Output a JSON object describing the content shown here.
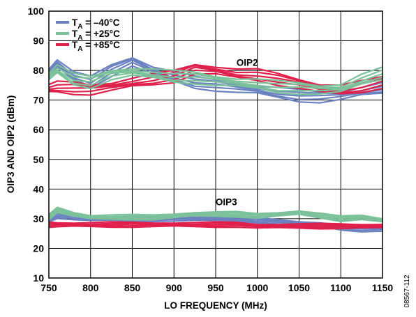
{
  "chart_data": {
    "type": "line",
    "xlabel": "LO FREQUENCY (MHz)",
    "ylabel": "OIP3 AND OIP2 (dBm)",
    "xlim": [
      750,
      1150
    ],
    "ylim": [
      10,
      100
    ],
    "xticks": [
      "750",
      "800",
      "850",
      "900",
      "950",
      "1000",
      "1050",
      "1100",
      "1150"
    ],
    "yticks": [
      "10",
      "20",
      "30",
      "40",
      "50",
      "60",
      "70",
      "80",
      "90",
      "100"
    ],
    "grid": true,
    "legend_position": "top-left",
    "x": [
      750,
      760,
      780,
      800,
      825,
      850,
      875,
      900,
      925,
      950,
      975,
      1000,
      1025,
      1050,
      1075,
      1100,
      1125,
      1150
    ],
    "series": [
      {
        "color": "#6b82c1",
        "group": "OIP2",
        "values": [
          79,
          82.5,
          78,
          76,
          80,
          83,
          80,
          78,
          76,
          75,
          74,
          73.5,
          72.5,
          71.5,
          71,
          71.5,
          73,
          74
        ]
      },
      {
        "color": "#7bc29a",
        "group": "OIP2",
        "values": [
          78,
          80.5,
          77,
          76,
          78.5,
          79.5,
          79,
          78,
          77.5,
          76.5,
          76,
          75.5,
          74.5,
          74,
          73.5,
          74,
          77,
          79
        ]
      },
      {
        "color": "#e01f4b",
        "group": "OIP2",
        "values": [
          74,
          74.5,
          74,
          73.5,
          74.5,
          76,
          77,
          78,
          80.5,
          80,
          79,
          78.5,
          77,
          75.5,
          74,
          73.5,
          74.5,
          76
        ]
      },
      {
        "color": "#6b82c1",
        "group": "OIP3",
        "values": [
          29.5,
          31,
          30.5,
          30,
          30,
          30,
          30,
          30,
          30,
          30,
          30,
          29.5,
          29,
          28.5,
          28,
          27,
          26.5,
          26.5
        ]
      },
      {
        "color": "#7bc29a",
        "group": "OIP3",
        "values": [
          30.5,
          33,
          31.5,
          30.5,
          30.5,
          30.5,
          30.5,
          31,
          31.5,
          31.5,
          31.5,
          31,
          31.5,
          32,
          31,
          30,
          30.5,
          29.5
        ]
      },
      {
        "color": "#e01f4b",
        "group": "OIP3",
        "values": [
          28,
          28,
          28,
          28,
          28,
          28,
          28,
          28,
          28,
          28,
          28,
          27.5,
          27.5,
          27.5,
          27.5,
          27.5,
          27.5,
          27.5
        ]
      }
    ],
    "legend": [
      {
        "t": "T",
        "sub": "A",
        "rest": " = –40°C",
        "color": "#6b82c1"
      },
      {
        "t": "T",
        "sub": "A",
        "rest": " = +25°C",
        "color": "#7bc29a"
      },
      {
        "t": "T",
        "sub": "A",
        "rest": " = +85°C",
        "color": "#e01f4b"
      }
    ],
    "annotations": [
      {
        "text": "OIP2",
        "x": 1000,
        "y": 81.5
      },
      {
        "text": "OIP3",
        "x": 975,
        "y": 34.5
      }
    ],
    "figure_code": "08567-112"
  }
}
